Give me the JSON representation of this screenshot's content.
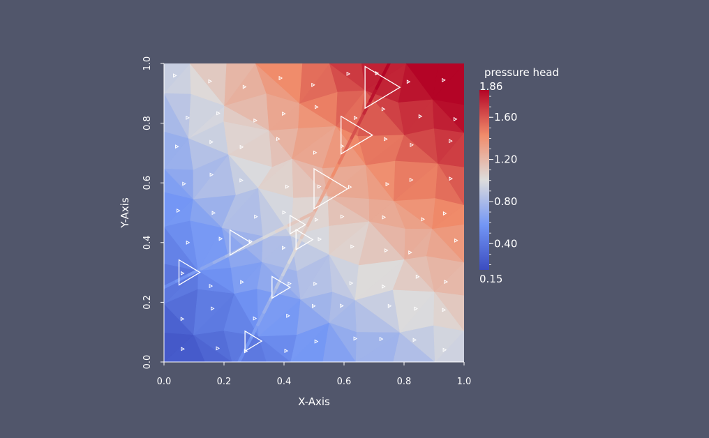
{
  "chart_data": {
    "type": "heatmap",
    "title": "",
    "xlabel": "X-Axis",
    "ylabel": "Y-Axis",
    "xlim": [
      0.0,
      1.0
    ],
    "ylim": [
      0.0,
      1.0
    ],
    "x_ticks": [
      "0.0",
      "0.2",
      "0.4",
      "0.6",
      "0.8",
      "1.0"
    ],
    "y_ticks": [
      "0.0",
      "0.2",
      "0.4",
      "0.6",
      "0.8",
      "1.0"
    ],
    "grid": false,
    "colorbar": {
      "title": "pressure head",
      "range": [
        0.15,
        1.86
      ],
      "ticks": [
        "0.40",
        "0.80",
        "1.20",
        "1.60"
      ],
      "min_label": "0.15",
      "max_label": "1.86",
      "colormap": "Cool to Warm",
      "colors": [
        "#3b4cc0",
        "#dddddd",
        "#b40426"
      ]
    },
    "fractures": [
      {
        "points": [
          [
            0.0,
            0.25
          ],
          [
            0.5,
            0.5
          ],
          [
            0.75,
            1.0
          ]
        ]
      },
      {
        "points": [
          [
            0.25,
            0.0
          ],
          [
            0.5,
            0.5
          ]
        ]
      }
    ],
    "vector_glyphs": "triangle arrows showing flow direction",
    "field_samples": [
      {
        "x": 0.05,
        "y": 0.05,
        "p": 0.18
      },
      {
        "x": 0.95,
        "y": 0.95,
        "p": 1.86
      },
      {
        "x": 0.05,
        "y": 0.95,
        "p": 1.0
      },
      {
        "x": 0.95,
        "y": 0.05,
        "p": 1.1
      }
    ]
  }
}
